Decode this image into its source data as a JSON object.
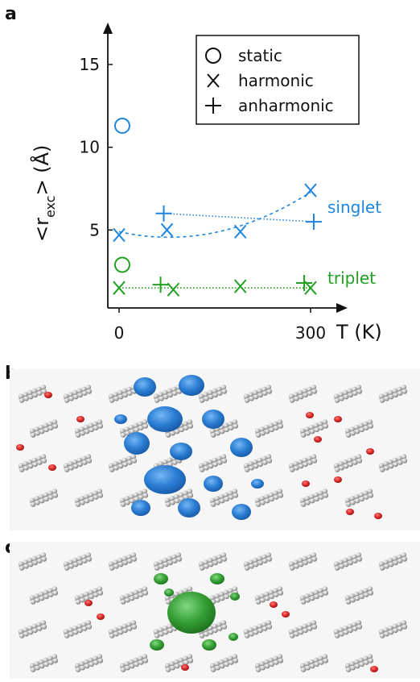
{
  "panels": {
    "a": "a",
    "b": "b",
    "c": "c"
  },
  "chart_data": {
    "type": "scatter",
    "xlabel": "T (K)",
    "ylabel_main": "<r",
    "ylabel_sub": "exc",
    "ylabel_tail": "> (Å)",
    "xlim": [
      -10,
      340
    ],
    "ylim": [
      0,
      17.5
    ],
    "x_ticks": [
      {
        "value": 0,
        "label": "0"
      },
      {
        "value": 300,
        "label": "300"
      }
    ],
    "y_ticks": [
      {
        "value": 5,
        "label": "5"
      },
      {
        "value": 10,
        "label": "10"
      },
      {
        "value": 15,
        "label": "15"
      }
    ],
    "legend": {
      "position": "top-right",
      "entries": [
        {
          "marker": "circle",
          "label": "static"
        },
        {
          "marker": "x",
          "label": "harmonic"
        },
        {
          "marker": "plus",
          "label": "anharmonic"
        }
      ]
    },
    "colors": {
      "singlet": "#1f86e0",
      "triplet": "#22a022"
    },
    "series_labels": {
      "singlet": "singlet",
      "triplet": "triplet"
    },
    "series": [
      {
        "state": "singlet",
        "model": "static",
        "marker": "circle",
        "points": [
          [
            5,
            11.3
          ]
        ]
      },
      {
        "state": "singlet",
        "model": "harmonic",
        "marker": "x",
        "fit": "dashed",
        "points": [
          [
            0,
            4.7
          ],
          [
            75,
            5.0
          ],
          [
            190,
            4.9
          ],
          [
            300,
            7.4
          ]
        ]
      },
      {
        "state": "singlet",
        "model": "anharmonic",
        "marker": "plus",
        "fit": "dotted",
        "points": [
          [
            70,
            6.0
          ],
          [
            305,
            5.5
          ]
        ]
      },
      {
        "state": "triplet",
        "model": "static",
        "marker": "circle",
        "points": [
          [
            5,
            2.9
          ]
        ]
      },
      {
        "state": "triplet",
        "model": "harmonic",
        "marker": "x",
        "fit": "dotted",
        "points": [
          [
            0,
            1.5
          ],
          [
            85,
            1.4
          ],
          [
            190,
            1.6
          ],
          [
            300,
            1.5
          ]
        ]
      },
      {
        "state": "triplet",
        "model": "anharmonic",
        "marker": "plus",
        "points": [
          [
            65,
            1.7
          ],
          [
            290,
            1.8
          ]
        ]
      }
    ]
  }
}
